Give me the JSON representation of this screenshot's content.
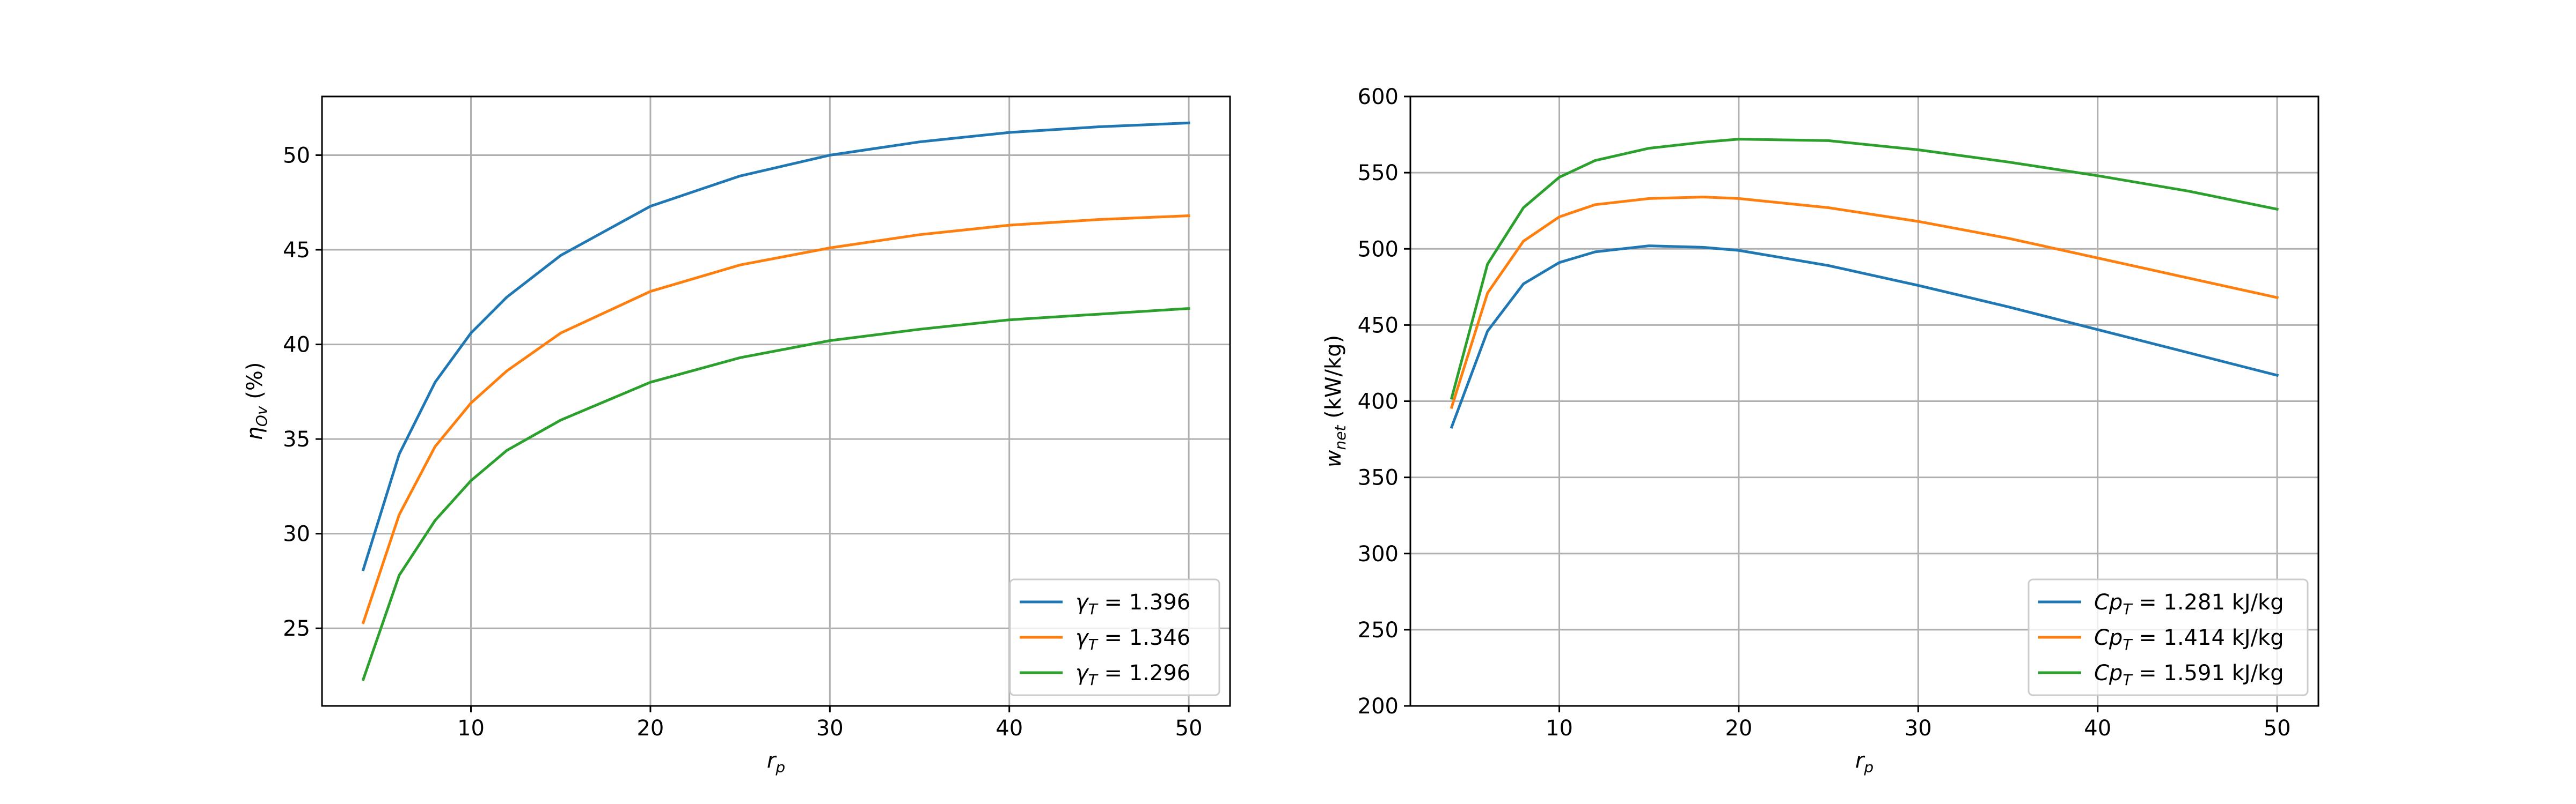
{
  "chart_data": [
    {
      "type": "line",
      "xlabel": "r",
      "xlabel_sub": "p",
      "ylabel": "η",
      "ylabel_sub": "Ov",
      "ylabel_unit": " (%)",
      "xlim": [
        1.7,
        52.3
      ],
      "ylim": [
        20.9,
        53.1
      ],
      "xticks": [
        10,
        20,
        30,
        40,
        50
      ],
      "yticks": [
        25,
        30,
        35,
        40,
        45,
        50
      ],
      "grid": true,
      "legend_position": "lower-right",
      "x": [
        4,
        6,
        8,
        10,
        12,
        15,
        20,
        25,
        30,
        35,
        40,
        45,
        50
      ],
      "series": [
        {
          "name_prefix": "γ",
          "name_sub": "T",
          "name_value": " = 1.396",
          "color": "#1f77b4",
          "values": [
            28.1,
            34.2,
            38.0,
            40.6,
            42.5,
            44.7,
            47.3,
            48.9,
            50.0,
            50.7,
            51.2,
            51.5,
            51.7
          ]
        },
        {
          "name_prefix": "γ",
          "name_sub": "T",
          "name_value": " = 1.346",
          "color": "#ff7f0e",
          "values": [
            25.3,
            31.0,
            34.6,
            36.9,
            38.6,
            40.6,
            42.8,
            44.2,
            45.1,
            45.8,
            46.3,
            46.6,
            46.8
          ]
        },
        {
          "name_prefix": "γ",
          "name_sub": "T",
          "name_value": " = 1.296",
          "color": "#2ca02c",
          "values": [
            22.3,
            27.8,
            30.7,
            32.8,
            34.4,
            36.0,
            38.0,
            39.3,
            40.2,
            40.8,
            41.3,
            41.6,
            41.9
          ]
        }
      ]
    },
    {
      "type": "line",
      "xlabel": "r",
      "xlabel_sub": "p",
      "ylabel": "w",
      "ylabel_sub": "net",
      "ylabel_unit": " (kW/kg)",
      "xlim": [
        1.7,
        52.3
      ],
      "ylim": [
        200,
        600
      ],
      "xticks": [
        10,
        20,
        30,
        40,
        50
      ],
      "yticks": [
        200,
        250,
        300,
        350,
        400,
        450,
        500,
        550,
        600
      ],
      "grid": true,
      "legend_position": "lower-right",
      "x": [
        4,
        6,
        8,
        10,
        12,
        15,
        18,
        20,
        25,
        30,
        35,
        40,
        45,
        50
      ],
      "series": [
        {
          "name_prefix": "Cp",
          "name_sub": "T",
          "name_value": " = 1.281 kJ/kg",
          "color": "#1f77b4",
          "values": [
            383,
            446,
            477,
            491,
            498,
            502,
            501,
            499,
            489,
            476,
            462,
            447,
            432,
            417
          ]
        },
        {
          "name_prefix": "Cp",
          "name_sub": "T",
          "name_value": " = 1.414 kJ/kg",
          "color": "#ff7f0e",
          "values": [
            396,
            471,
            505,
            521,
            529,
            533,
            534,
            533,
            527,
            518,
            507,
            494,
            481,
            468
          ]
        },
        {
          "name_prefix": "Cp",
          "name_sub": "T",
          "name_value": " = 1.591 kJ/kg",
          "color": "#2ca02c",
          "values": [
            402,
            490,
            527,
            547,
            558,
            566,
            570,
            572,
            571,
            565,
            557,
            548,
            538,
            526
          ]
        }
      ]
    }
  ]
}
